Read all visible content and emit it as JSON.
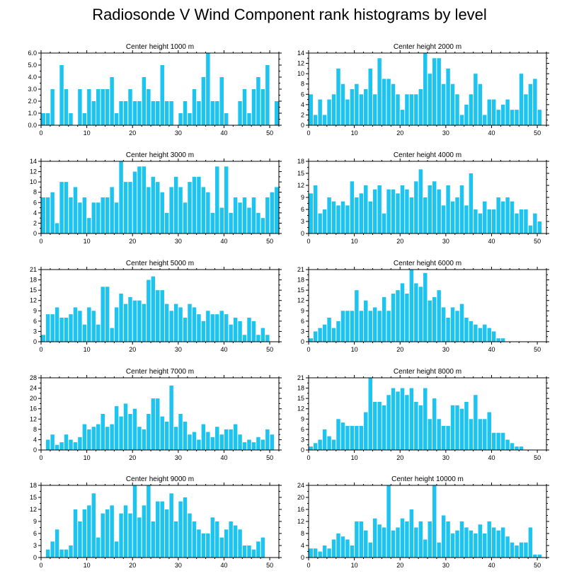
{
  "title": "Radiosonde V Wind Component rank histograms by level",
  "colors": {
    "bar": "#1ec4f0",
    "frame": "#000000"
  },
  "chart_data": [
    {
      "type": "bar",
      "title": "Center height 1000 m",
      "xlim": [
        0,
        52
      ],
      "ylim": [
        0,
        6
      ],
      "yticks": [
        0,
        1,
        2,
        3,
        4,
        5,
        6
      ],
      "ytick_labels": [
        "0.0",
        "1.0",
        "2.0",
        "3.0",
        "4.0",
        "5.0",
        "6.0"
      ],
      "xticks": [
        0,
        10,
        20,
        30,
        40,
        50
      ],
      "values": [
        1,
        1,
        3,
        0,
        5,
        3,
        1,
        0,
        3,
        1,
        3,
        2,
        3,
        3,
        3,
        4,
        1,
        2,
        2,
        3,
        2,
        2,
        4,
        3,
        2,
        2,
        5,
        2,
        2,
        0,
        1,
        2,
        1,
        3,
        2,
        4,
        6,
        2,
        2,
        4,
        1,
        0,
        0,
        2,
        3,
        1,
        3,
        4,
        3,
        5,
        0,
        2
      ]
    },
    {
      "type": "bar",
      "title": "Center height 2000 m",
      "xlim": [
        0,
        52
      ],
      "ylim": [
        0,
        14
      ],
      "yticks": [
        0,
        2,
        4,
        6,
        8,
        10,
        12,
        14
      ],
      "ytick_labels": [
        "0",
        "2",
        "4",
        "6",
        "8",
        "10",
        "12",
        "14"
      ],
      "xticks": [
        0,
        10,
        20,
        30,
        40,
        50
      ],
      "values": [
        6,
        2,
        5,
        2,
        5,
        6,
        11,
        8,
        5,
        7,
        8,
        6,
        7,
        11,
        6,
        13,
        9,
        9,
        8,
        6,
        3,
        6,
        6,
        6,
        7,
        14,
        10,
        13,
        13,
        8,
        11,
        8,
        6,
        2,
        4,
        6,
        10,
        8,
        2,
        5,
        5,
        3,
        4,
        5,
        3,
        3,
        10,
        6,
        8,
        9,
        3,
        0
      ]
    },
    {
      "type": "bar",
      "title": "Center height 3000 m",
      "xlim": [
        0,
        52
      ],
      "ylim": [
        0,
        14
      ],
      "yticks": [
        0,
        2,
        4,
        6,
        8,
        10,
        12,
        14
      ],
      "ytick_labels": [
        "0",
        "2",
        "4",
        "6",
        "8",
        "10",
        "12",
        "14"
      ],
      "xticks": [
        0,
        10,
        20,
        30,
        40,
        50
      ],
      "values": [
        7,
        7,
        8,
        2,
        10,
        10,
        7,
        9,
        6,
        7,
        3,
        6,
        6,
        7,
        7,
        9,
        6,
        14,
        10,
        10,
        12,
        13,
        13,
        9,
        11,
        10,
        8,
        4,
        9,
        11,
        9,
        6,
        10,
        11,
        11,
        9,
        8,
        4,
        13,
        5,
        13,
        4,
        7,
        6,
        7,
        5,
        7,
        4,
        3,
        7,
        8,
        9
      ]
    },
    {
      "type": "bar",
      "title": "Center height 4000 m",
      "xlim": [
        0,
        52
      ],
      "ylim": [
        0,
        18
      ],
      "yticks": [
        0,
        3,
        6,
        9,
        12,
        15,
        18
      ],
      "ytick_labels": [
        "0",
        "3",
        "6",
        "9",
        "12",
        "15",
        "18"
      ],
      "xticks": [
        0,
        10,
        20,
        30,
        40,
        50
      ],
      "values": [
        10,
        12,
        5,
        6,
        9,
        8,
        7,
        8,
        7,
        13,
        9,
        10,
        12,
        8,
        11,
        12,
        5,
        11,
        11,
        10,
        12,
        11,
        9,
        13,
        16,
        9,
        12,
        13,
        11,
        7,
        12,
        8,
        9,
        12,
        7,
        15,
        6,
        5,
        8,
        6,
        6,
        9,
        8,
        9,
        8,
        5,
        6,
        6,
        2,
        5,
        3,
        0
      ]
    },
    {
      "type": "bar",
      "title": "Center height 5000 m",
      "xlim": [
        0,
        52
      ],
      "ylim": [
        0,
        21
      ],
      "yticks": [
        0,
        3,
        6,
        9,
        12,
        15,
        18,
        21
      ],
      "ytick_labels": [
        "0",
        "3",
        "6",
        "9",
        "12",
        "15",
        "18",
        "21"
      ],
      "xticks": [
        0,
        10,
        20,
        30,
        40,
        50
      ],
      "values": [
        2,
        8,
        8,
        10,
        7,
        7,
        8,
        10,
        9,
        5,
        10,
        9,
        5,
        16,
        16,
        4,
        10,
        14,
        11,
        13,
        12,
        12,
        11,
        18,
        19,
        15,
        15,
        11,
        9,
        11,
        10,
        7,
        11,
        10,
        8,
        6,
        9,
        8,
        8,
        9,
        8,
        5,
        7,
        6,
        2,
        7,
        6,
        2,
        4,
        2,
        0,
        0
      ]
    },
    {
      "type": "bar",
      "title": "Center height 6000 m",
      "xlim": [
        0,
        52
      ],
      "ylim": [
        0,
        21
      ],
      "yticks": [
        0,
        3,
        6,
        9,
        12,
        15,
        18,
        21
      ],
      "ytick_labels": [
        "0",
        "3",
        "6",
        "9",
        "12",
        "15",
        "18",
        "21"
      ],
      "xticks": [
        0,
        10,
        20,
        30,
        40,
        50
      ],
      "values": [
        1,
        3,
        4,
        5,
        7,
        4,
        6,
        9,
        9,
        9,
        15,
        9,
        12,
        9,
        10,
        9,
        13,
        9,
        14,
        15,
        17,
        14,
        21,
        17,
        16,
        20,
        12,
        13,
        15,
        10,
        7,
        10,
        9,
        11,
        7,
        6,
        5,
        4,
        5,
        4,
        3,
        1,
        1,
        0,
        0,
        0,
        0,
        0,
        0,
        0,
        0,
        0
      ]
    },
    {
      "type": "bar",
      "title": "Center height 7000 m",
      "xlim": [
        0,
        52
      ],
      "ylim": [
        0,
        28
      ],
      "yticks": [
        0,
        4,
        8,
        12,
        16,
        20,
        24,
        28
      ],
      "ytick_labels": [
        "0",
        "4",
        "8",
        "12",
        "16",
        "20",
        "24",
        "28"
      ],
      "xticks": [
        0,
        10,
        20,
        30,
        40,
        50
      ],
      "values": [
        0,
        4,
        6,
        2,
        3,
        6,
        4,
        3,
        5,
        10,
        8,
        9,
        10,
        14,
        9,
        10,
        17,
        13,
        18,
        14,
        16,
        9,
        8,
        14,
        20,
        20,
        13,
        11,
        25,
        9,
        14,
        11,
        6,
        7,
        4,
        10,
        7,
        5,
        9,
        6,
        8,
        8,
        10,
        6,
        3,
        4,
        3,
        5,
        4,
        8,
        6,
        0
      ]
    },
    {
      "type": "bar",
      "title": "Center height 8000 m",
      "xlim": [
        0,
        52
      ],
      "ylim": [
        0,
        21
      ],
      "yticks": [
        0,
        3,
        6,
        9,
        12,
        15,
        18,
        21
      ],
      "ytick_labels": [
        "0",
        "3",
        "6",
        "9",
        "12",
        "15",
        "18",
        "21"
      ],
      "xticks": [
        0,
        10,
        20,
        30,
        40,
        50
      ],
      "values": [
        1,
        2,
        3,
        6,
        4,
        3,
        9,
        8,
        7,
        7,
        7,
        7,
        11,
        21,
        14,
        14,
        13,
        16,
        18,
        17,
        18,
        16,
        18,
        14,
        13,
        18,
        9,
        15,
        9,
        7,
        7,
        13,
        13,
        12,
        14,
        9,
        16,
        9,
        9,
        11,
        5,
        5,
        5,
        3,
        2,
        1,
        1,
        0,
        0,
        0,
        0,
        0
      ]
    },
    {
      "type": "bar",
      "title": "Center height 9000 m",
      "xlim": [
        0,
        52
      ],
      "ylim": [
        0,
        18
      ],
      "yticks": [
        0,
        3,
        6,
        9,
        12,
        15,
        18
      ],
      "ytick_labels": [
        "0",
        "3",
        "6",
        "9",
        "12",
        "15",
        "18"
      ],
      "xticks": [
        0,
        10,
        20,
        30,
        40,
        50
      ],
      "values": [
        0,
        2,
        4,
        7,
        2,
        2,
        3,
        12,
        9,
        12,
        13,
        16,
        5,
        11,
        12,
        13,
        4,
        11,
        13,
        11,
        18,
        10,
        13,
        18,
        9,
        14,
        14,
        12,
        16,
        9,
        14,
        15,
        11,
        9,
        7,
        6,
        6,
        10,
        9,
        5,
        7,
        9,
        8,
        7,
        3,
        3,
        2,
        4,
        5,
        0,
        0,
        0
      ]
    },
    {
      "type": "bar",
      "title": "Center height 10000 m",
      "xlim": [
        0,
        52
      ],
      "ylim": [
        0,
        24
      ],
      "yticks": [
        0,
        4,
        8,
        12,
        16,
        20,
        24
      ],
      "ytick_labels": [
        "0",
        "4",
        "8",
        "12",
        "16",
        "20",
        "24"
      ],
      "xticks": [
        0,
        10,
        20,
        30,
        40,
        50
      ],
      "values": [
        3,
        3,
        2,
        4,
        3,
        6,
        8,
        7,
        6,
        4,
        12,
        12,
        9,
        5,
        13,
        11,
        10,
        24,
        9,
        10,
        13,
        12,
        16,
        10,
        12,
        6,
        12,
        24,
        5,
        14,
        12,
        8,
        9,
        12,
        10,
        9,
        8,
        11,
        8,
        12,
        10,
        9,
        10,
        7,
        5,
        4,
        5,
        5,
        10,
        1,
        1,
        0
      ]
    }
  ]
}
